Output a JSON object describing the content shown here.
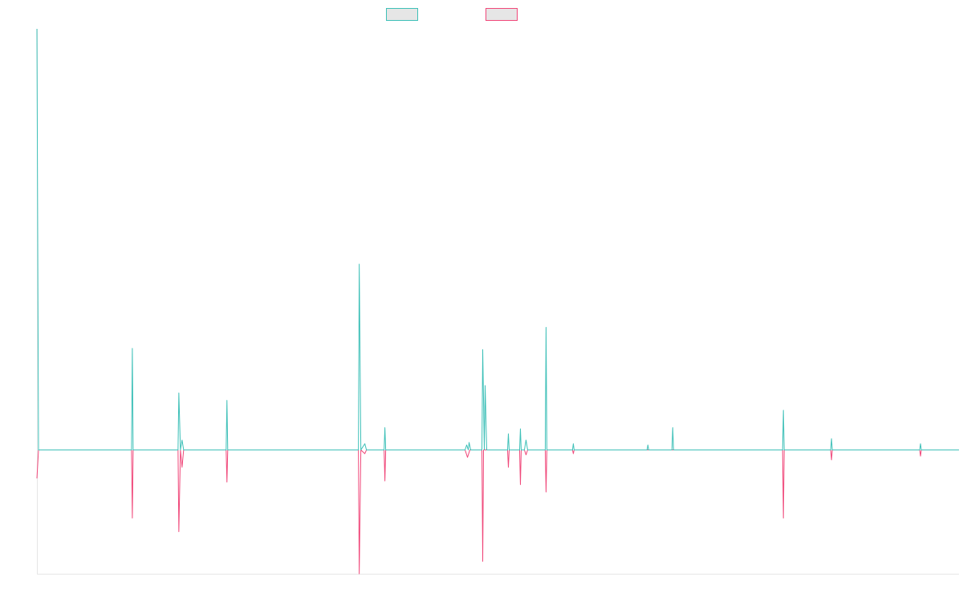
{
  "chart_data": {
    "type": "line",
    "title": "",
    "xlabel": "",
    "ylabel": "",
    "x_range": [
      0,
      1150
    ],
    "ylim": [
      -100,
      340
    ],
    "grid": false,
    "legend_placement": "top-center",
    "series": [
      {
        "color": "#3ec0b8",
        "fill": "#e6e6e6",
        "points": [
          [
            0,
            340
          ],
          [
            2,
            0
          ],
          [
            118,
            0
          ],
          [
            119,
            82
          ],
          [
            120,
            0
          ],
          [
            176,
            0
          ],
          [
            177,
            46
          ],
          [
            179,
            0
          ],
          [
            181,
            8
          ],
          [
            183,
            0
          ],
          [
            236,
            0
          ],
          [
            237,
            40
          ],
          [
            238,
            0
          ],
          [
            401,
            0
          ],
          [
            402,
            150
          ],
          [
            404,
            0
          ],
          [
            409,
            5
          ],
          [
            411,
            0
          ],
          [
            433,
            0
          ],
          [
            434,
            18
          ],
          [
            435,
            0
          ],
          [
            534,
            0
          ],
          [
            536,
            4
          ],
          [
            538,
            0
          ],
          [
            539,
            6
          ],
          [
            541,
            0
          ],
          [
            555,
            0
          ],
          [
            556,
            81
          ],
          [
            558,
            0
          ],
          [
            559,
            52
          ],
          [
            561,
            0
          ],
          [
            587,
            0
          ],
          [
            588,
            13
          ],
          [
            589,
            0
          ],
          [
            602,
            0
          ],
          [
            603,
            17
          ],
          [
            604,
            0
          ],
          [
            608,
            0
          ],
          [
            610,
            8
          ],
          [
            612,
            0
          ],
          [
            634,
            0
          ],
          [
            635,
            99
          ],
          [
            636,
            0
          ],
          [
            668,
            0
          ],
          [
            669,
            5
          ],
          [
            670,
            0
          ],
          [
            761,
            0
          ],
          [
            762,
            4
          ],
          [
            763,
            0
          ],
          [
            792,
            0
          ],
          [
            793,
            18
          ],
          [
            794,
            0
          ],
          [
            930,
            0
          ],
          [
            931,
            32
          ],
          [
            932,
            0
          ],
          [
            990,
            0
          ],
          [
            991,
            9
          ],
          [
            992,
            0
          ],
          [
            1101,
            0
          ],
          [
            1102,
            5
          ],
          [
            1103,
            0
          ],
          [
            1150,
            0
          ]
        ]
      },
      {
        "color": "#f0487a",
        "fill": "#e6e6e6",
        "points": [
          [
            0,
            -23
          ],
          [
            2,
            0
          ],
          [
            118,
            0
          ],
          [
            119,
            -55
          ],
          [
            120,
            0
          ],
          [
            176,
            0
          ],
          [
            177,
            -66
          ],
          [
            179,
            0
          ],
          [
            181,
            -14
          ],
          [
            183,
            0
          ],
          [
            236,
            0
          ],
          [
            237,
            -26
          ],
          [
            238,
            0
          ],
          [
            401,
            0
          ],
          [
            402,
            -100
          ],
          [
            404,
            0
          ],
          [
            409,
            -3
          ],
          [
            411,
            0
          ],
          [
            433,
            0
          ],
          [
            434,
            -25
          ],
          [
            435,
            0
          ],
          [
            534,
            0
          ],
          [
            537,
            -6
          ],
          [
            540,
            0
          ],
          [
            555,
            0
          ],
          [
            556,
            -90
          ],
          [
            557,
            0
          ],
          [
            587,
            0
          ],
          [
            588,
            -14
          ],
          [
            589,
            0
          ],
          [
            602,
            0
          ],
          [
            603,
            -28
          ],
          [
            604,
            0
          ],
          [
            608,
            0
          ],
          [
            610,
            -4
          ],
          [
            612,
            0
          ],
          [
            634,
            0
          ],
          [
            635,
            -34
          ],
          [
            636,
            0
          ],
          [
            668,
            0
          ],
          [
            669,
            -3
          ],
          [
            670,
            0
          ],
          [
            930,
            0
          ],
          [
            931,
            -55
          ],
          [
            932,
            0
          ],
          [
            990,
            0
          ],
          [
            991,
            -8
          ],
          [
            992,
            0
          ],
          [
            1101,
            0
          ],
          [
            1102,
            -5
          ],
          [
            1103,
            0
          ],
          [
            1150,
            0
          ]
        ]
      }
    ]
  }
}
